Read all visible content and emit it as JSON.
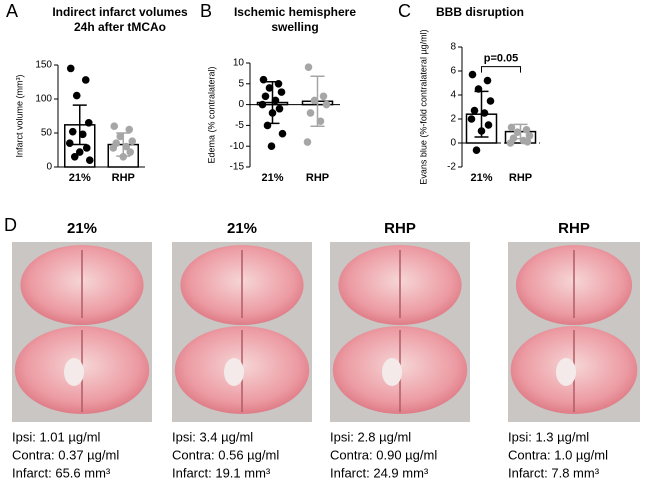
{
  "chart_data": [
    {
      "type": "bar",
      "panel_label": "A",
      "title": [
        "Indirect infarct volumes",
        "24h after tMCAo"
      ],
      "ylabel": "Infarct volume (mm³)",
      "categories": [
        "21%",
        "RHP"
      ],
      "values": [
        62,
        33
      ],
      "errors": [
        29,
        17
      ],
      "points": [
        [
          145,
          128,
          105,
          65,
          52,
          48,
          35,
          28,
          22,
          15,
          10
        ],
        [
          60,
          55,
          45,
          38,
          35,
          30,
          28,
          22,
          15
        ]
      ],
      "point_colors": [
        "#000000",
        "#a6a6a6"
      ],
      "ylim": [
        0,
        150
      ],
      "yticks": [
        0,
        50,
        100,
        150
      ]
    },
    {
      "type": "bar",
      "panel_label": "B",
      "title": [
        "Ischemic hemisphere",
        "swelling"
      ],
      "ylabel": "Edema (% contralateral)",
      "categories": [
        "21%",
        "RHP"
      ],
      "values": [
        0.5,
        0.8
      ],
      "errors": [
        5,
        6
      ],
      "points": [
        [
          6,
          5,
          4,
          3,
          2,
          1,
          0,
          -1,
          -2,
          -5,
          -7,
          -10
        ],
        [
          9,
          2,
          1,
          0,
          -2,
          -4,
          -9
        ]
      ],
      "point_colors": [
        "#000000",
        "#a6a6a6"
      ],
      "ylim": [
        -15,
        10
      ],
      "yticks": [
        -15,
        -10,
        -5,
        0,
        5,
        10
      ]
    },
    {
      "type": "bar",
      "panel_label": "C",
      "title": [
        "BBB disruption"
      ],
      "ylabel": "Evans blue (%-fold contralateral µg/ml)",
      "categories": [
        "21%",
        "RHP"
      ],
      "values": [
        2.4,
        0.95
      ],
      "errors": [
        1.9,
        0.6
      ],
      "points": [
        [
          5.7,
          5.2,
          4.5,
          3.5,
          2.7,
          2.5,
          2.0,
          1.5,
          1.0,
          -0.6
        ],
        [
          1.3,
          1.1,
          0.9,
          0.6,
          0.4,
          0.2,
          0.0,
          0.1
        ]
      ],
      "point_colors": [
        "#000000",
        "#a6a6a6"
      ],
      "ylim": [
        -2,
        8
      ],
      "yticks": [
        -2,
        0,
        2,
        4,
        6,
        8
      ],
      "annotation": "p=0.05"
    }
  ],
  "panel_d": {
    "label": "D",
    "slices": [
      {
        "heading": "21%",
        "lines": [
          "Ipsi: 1.01 µg/ml",
          "Contra: 0.37 µg/ml",
          "Infarct: 65.6 mm³"
        ]
      },
      {
        "heading": "21%",
        "lines": [
          "Ipsi: 3.4 µg/ml",
          "Contra: 0.56 µg/ml",
          "Infarct: 19.1 mm³"
        ]
      },
      {
        "heading": "RHP",
        "lines": [
          "Ipsi: 2.8 µg/ml",
          "Contra: 0.90 µg/ml",
          "Infarct: 24.9 mm³"
        ]
      },
      {
        "heading": "RHP",
        "lines": [
          "Ipsi: 1.3 µg/ml",
          "Contra: 1.0 µg/ml",
          "Infarct: 7.8 mm³"
        ]
      }
    ]
  }
}
